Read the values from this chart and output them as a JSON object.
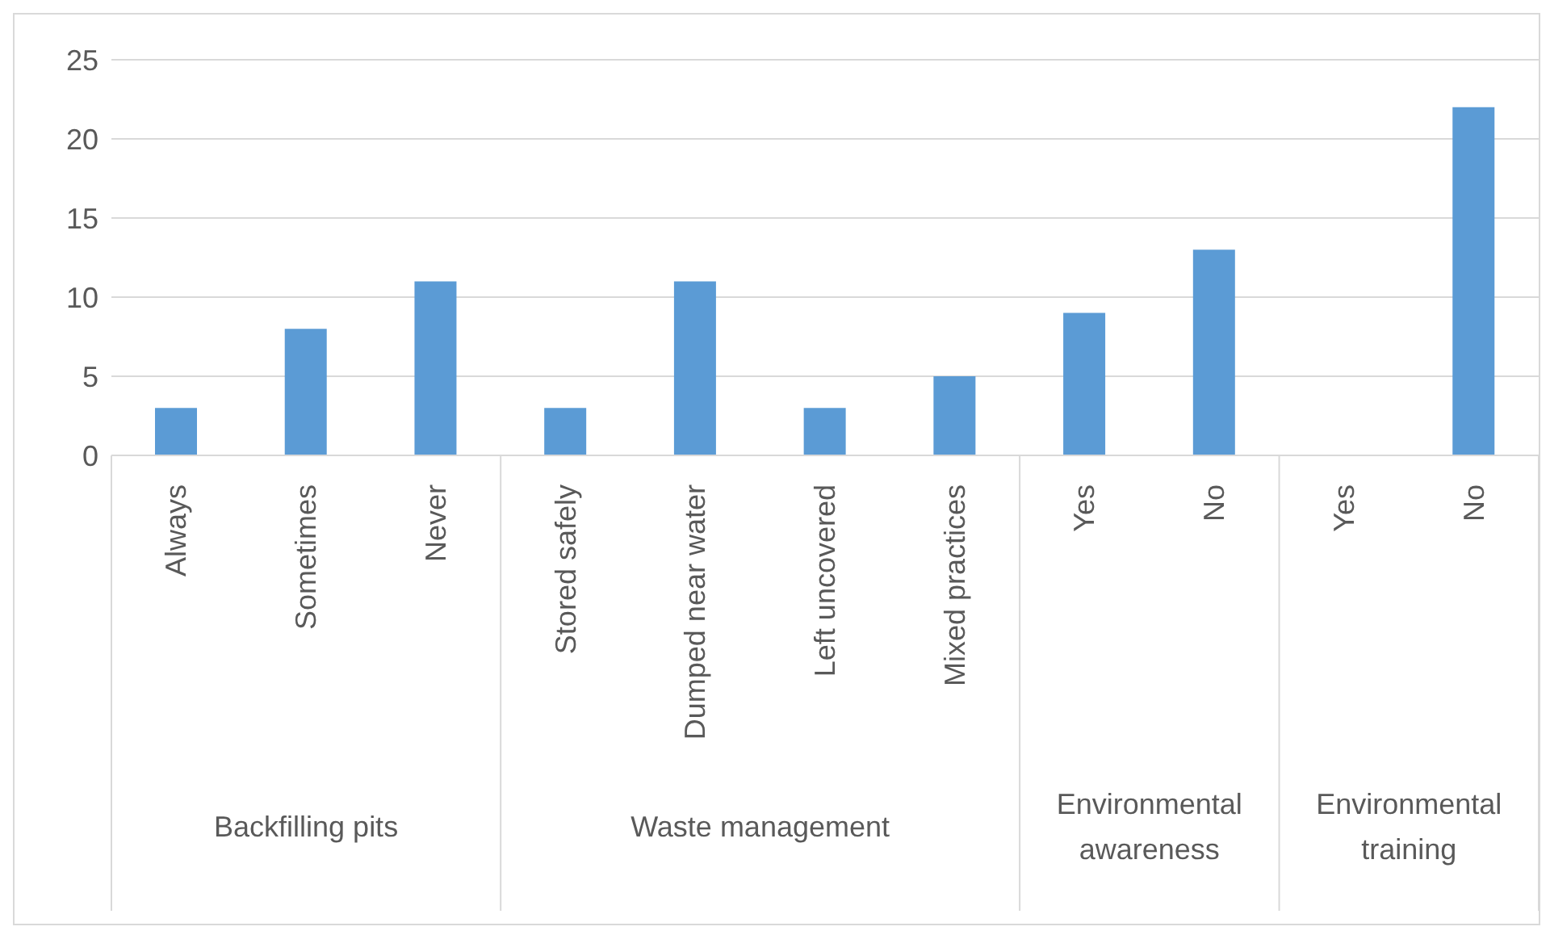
{
  "chart_data": {
    "type": "bar",
    "categories": [
      "Always",
      "Sometimes",
      "Never",
      "Stored safely",
      "Dumped near water",
      "Left uncovered",
      "Mixed practices",
      "Yes",
      "No",
      "Yes",
      "No"
    ],
    "values": [
      3,
      8,
      11,
      3,
      11,
      3,
      5,
      9,
      13,
      0,
      22
    ],
    "color": "#5b9bd5",
    "ylim": [
      0,
      25
    ],
    "yticks": [
      0,
      5,
      10,
      15,
      20,
      25
    ],
    "grid": "y",
    "annotations": [
      "Backfilling pits",
      "Waste management",
      "Environmental awareness",
      "Environmental training"
    ]
  }
}
